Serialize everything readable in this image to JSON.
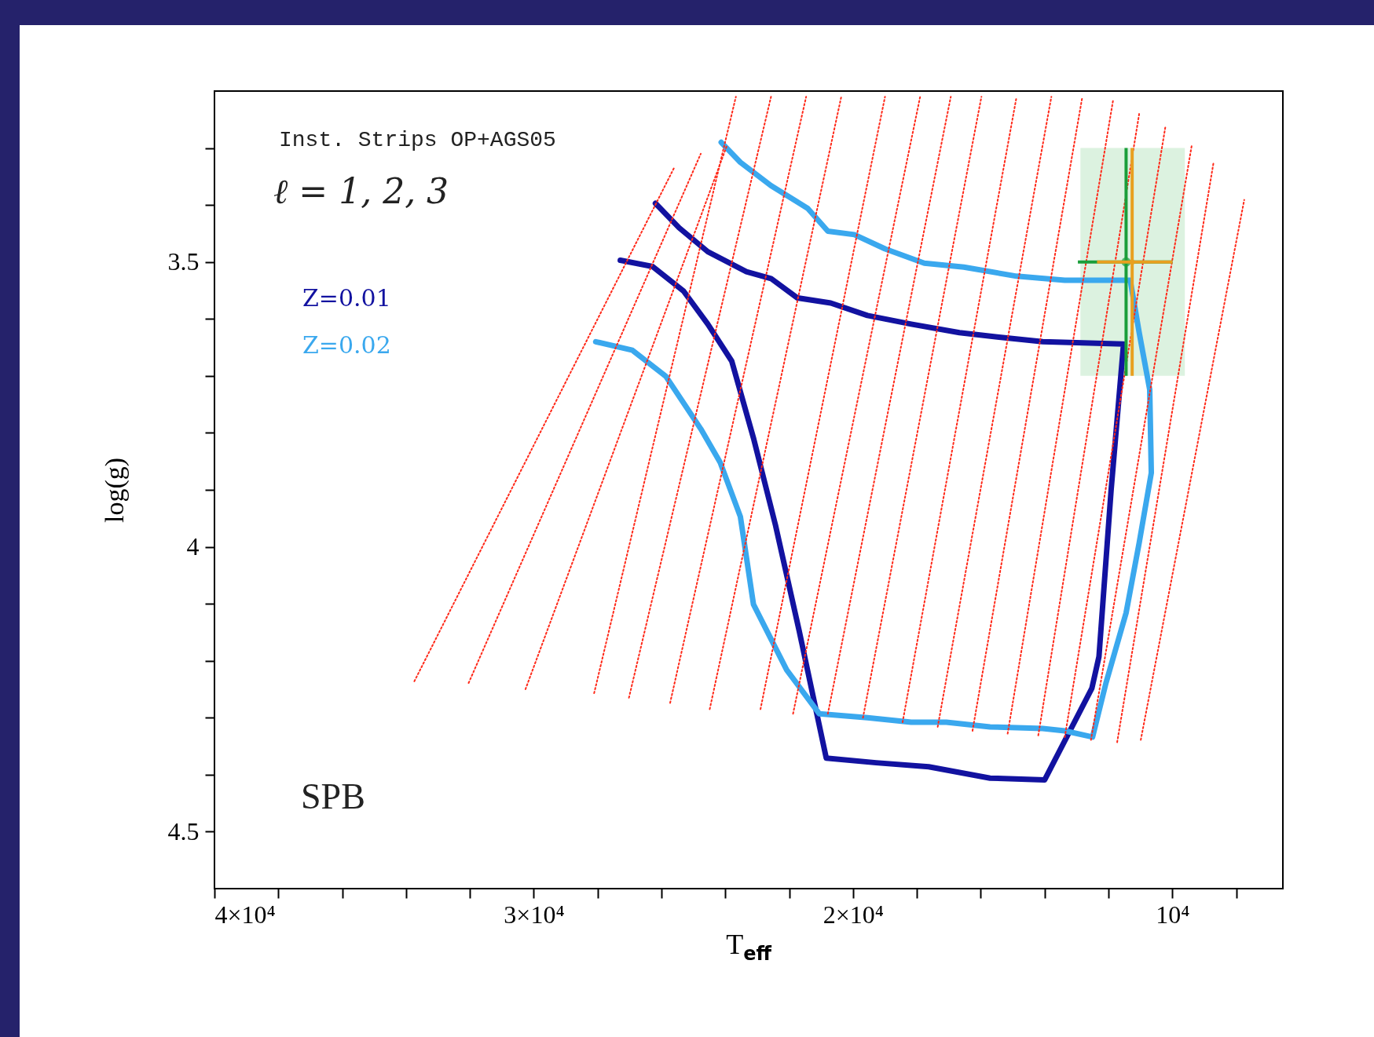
{
  "chart_data": {
    "type": "line",
    "xlabel": "T$_{eff}$",
    "ylabel": "log(g)",
    "annotations": [
      "Inst. Strips OP+AGS05",
      "ℓ = 1, 2, 3",
      "SPB"
    ],
    "xlim": [
      40000,
      6540
    ],
    "ylim": [
      4.6,
      3.2
    ],
    "xticks": [
      {
        "value": 40000,
        "label": "4×10⁴"
      },
      {
        "value": 38000,
        "label": null
      },
      {
        "value": 36000,
        "label": null
      },
      {
        "value": 34000,
        "label": null
      },
      {
        "value": 32000,
        "label": null
      },
      {
        "value": 30000,
        "label": "3×10⁴"
      },
      {
        "value": 28000,
        "label": null
      },
      {
        "value": 26000,
        "label": null
      },
      {
        "value": 24000,
        "label": null
      },
      {
        "value": 22000,
        "label": null
      },
      {
        "value": 20000,
        "label": "2×10⁴"
      },
      {
        "value": 18000,
        "label": null
      },
      {
        "value": 16000,
        "label": null
      },
      {
        "value": 14000,
        "label": null
      },
      {
        "value": 12000,
        "label": null
      },
      {
        "value": 10000,
        "label": "10⁴"
      },
      {
        "value": 8000,
        "label": null
      }
    ],
    "yticks": [
      {
        "value": 3.3,
        "label": null
      },
      {
        "value": 3.4,
        "label": null
      },
      3.5,
      {
        "value": 3.6,
        "label": null
      },
      {
        "value": 3.7,
        "label": null
      },
      {
        "value": 3.8,
        "label": null
      },
      {
        "value": 3.9,
        "label": null
      },
      4,
      {
        "value": 4.1,
        "label": null
      },
      {
        "value": 4.2,
        "label": null
      },
      {
        "value": 4.3,
        "label": null
      },
      {
        "value": 4.4,
        "label": null
      },
      4.5
    ],
    "legend": "top left",
    "bands": [
      {
        "axis": "x",
        "from": 12880,
        "to": 9610,
        "color": "#dcf2e0"
      }
    ],
    "series": [
      {
        "color": "#ff2a1a",
        "line_style": "dotted",
        "x": [
          33740,
          25590
        ],
        "values": [
          4.236,
          3.333
        ]
      },
      {
        "color": "#ff2a1a",
        "line_style": "dotted",
        "x": [
          32040,
          24770
        ],
        "values": [
          4.239,
          3.31
        ]
      },
      {
        "color": "#ff2a1a",
        "line_style": "dotted",
        "x": [
          30260,
          23940
        ],
        "values": [
          4.25,
          3.294
        ]
      },
      {
        "color": "#ff2a1a",
        "line_style": "dotted",
        "x": [
          28110,
          23670
        ],
        "values": [
          4.257,
          3.21
        ]
      },
      {
        "color": "#ff2a1a",
        "line_style": "dotted",
        "x": [
          27020,
          22570
        ],
        "values": [
          4.265,
          3.21
        ]
      },
      {
        "color": "#ff2a1a",
        "line_style": "dotted",
        "x": [
          25730,
          21470
        ],
        "values": [
          4.274,
          3.21
        ]
      },
      {
        "color": "#ff2a1a",
        "line_style": "dotted",
        "x": [
          24490,
          20370
        ],
        "values": [
          4.285,
          3.21
        ]
      },
      {
        "color": "#ff2a1a",
        "line_style": "dotted",
        "x": [
          22900,
          19000
        ],
        "values": [
          4.285,
          3.21
        ]
      },
      {
        "color": "#ff2a1a",
        "line_style": "dotted",
        "x": [
          21880,
          17900
        ],
        "values": [
          4.293,
          3.21
        ]
      },
      {
        "color": "#ff2a1a",
        "line_style": "dotted",
        "x": [
          20790,
          16940
        ],
        "values": [
          4.293,
          3.21
        ]
      },
      {
        "color": "#ff2a1a",
        "line_style": "dotted",
        "x": [
          19690,
          15980
        ],
        "values": [
          4.3,
          3.21
        ]
      },
      {
        "color": "#ff2a1a",
        "line_style": "dotted",
        "x": [
          18450,
          14880
        ],
        "values": [
          4.308,
          3.21
        ]
      },
      {
        "color": "#ff2a1a",
        "line_style": "dotted",
        "x": [
          17350,
          13790
        ],
        "values": [
          4.316,
          3.21
        ]
      },
      {
        "color": "#ff2a1a",
        "line_style": "dotted",
        "x": [
          16260,
          12820
        ],
        "values": [
          4.323,
          3.21
        ]
      },
      {
        "color": "#ff2a1a",
        "line_style": "dotted",
        "x": [
          15160,
          11860
        ],
        "values": [
          4.328,
          3.217
        ]
      },
      {
        "color": "#ff2a1a",
        "line_style": "dotted",
        "x": [
          14200,
          11040
        ],
        "values": [
          4.331,
          3.24
        ]
      },
      {
        "color": "#ff2a1a",
        "line_style": "dotted",
        "x": [
          13370,
          10220
        ],
        "values": [
          4.334,
          3.263
        ]
      },
      {
        "color": "#ff2a1a",
        "line_style": "dotted",
        "x": [
          12550,
          9390
        ],
        "values": [
          4.339,
          3.294
        ]
      },
      {
        "color": "#ff2a1a",
        "line_style": "dotted",
        "x": [
          11730,
          8710
        ],
        "values": [
          4.343,
          3.325
        ]
      },
      {
        "color": "#ff2a1a",
        "line_style": "dotted",
        "x": [
          10990,
          7750
        ],
        "values": [
          4.339,
          3.391
        ]
      },
      {
        "name": "Z=0.01",
        "color": "#1212a0",
        "x": [
          26190,
          25450,
          24550,
          23340,
          22570,
          21750,
          20700,
          19550,
          18180,
          16670,
          15430,
          14060,
          11530,
          11920,
          12300,
          12520,
          14000,
          15710,
          17630,
          19280,
          20840,
          21690,
          22430,
          23120,
          23800,
          24550,
          25310,
          26280,
          27290
        ],
        "values": [
          3.397,
          3.44,
          3.482,
          3.517,
          3.529,
          3.563,
          3.572,
          3.594,
          3.609,
          3.624,
          3.632,
          3.64,
          3.644,
          3.901,
          4.193,
          4.248,
          4.409,
          4.406,
          4.386,
          4.379,
          4.371,
          4.147,
          3.962,
          3.809,
          3.674,
          3.609,
          3.551,
          3.508,
          3.497
        ]
      },
      {
        "name": "Z=0.02",
        "color": "#3aa8ee",
        "x": [
          24130,
          23530,
          22570,
          21420,
          20790,
          19960,
          19000,
          17770,
          16530,
          14880,
          13370,
          11320,
          11040,
          10710,
          10660,
          11040,
          11450,
          12080,
          12500,
          13370,
          14060,
          15710,
          17080,
          18180,
          19550,
          21060,
          22080,
          23120,
          23530,
          24160,
          24770,
          25860,
          26910,
          28060
        ],
        "values": [
          3.29,
          3.325,
          3.366,
          3.406,
          3.446,
          3.452,
          3.477,
          3.502,
          3.509,
          3.525,
          3.532,
          3.532,
          3.624,
          3.724,
          3.87,
          3.993,
          4.116,
          4.239,
          4.334,
          4.323,
          4.319,
          4.316,
          4.308,
          4.308,
          4.3,
          4.293,
          4.216,
          4.101,
          3.947,
          3.852,
          3.793,
          3.701,
          3.655,
          3.64
        ]
      },
      {
        "type": "scatter",
        "marker": "circle",
        "color": "#1a9e3a",
        "x": [
          11450
        ],
        "values": [
          3.5
        ],
        "errors": [
          0.2
        ],
        "xerrors": [
          [
            10000,
            12960
          ]
        ]
      },
      {
        "type": "scatter",
        "marker": "circle",
        "color": "#e8a020",
        "x": [
          11260
        ],
        "values": [
          3.5
        ],
        "errors": [
          0.2
        ],
        "xerrors": [
          [
            10000,
            12360
          ]
        ]
      }
    ]
  }
}
